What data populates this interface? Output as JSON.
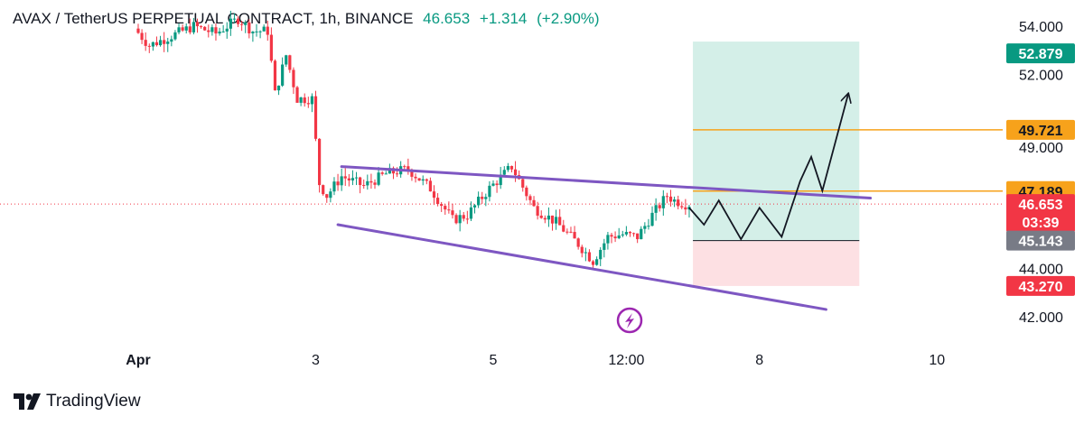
{
  "header": {
    "symbol": "AVAX / TetherUS PERPETUAL CONTRACT",
    "interval": "1h",
    "exchange": "BINANCE",
    "last_price": "46.653",
    "change": "+1.314",
    "change_pct": "(+2.90%)"
  },
  "brand": {
    "name": "TradingView"
  },
  "colors": {
    "up": "#089981",
    "down": "#f23645",
    "channel": "#7e57c2",
    "level": "#f7a21b",
    "target_zone": "#d4efe8",
    "stop_zone": "#fde0e3",
    "entry_tag": "#787b86",
    "grid_text": "#131722"
  },
  "icons": {
    "flash": "lightning-bolt-icon",
    "logo": "tradingview-logo-icon"
  },
  "chart_data": {
    "type": "candlestick",
    "title": "",
    "y_axis": {
      "side": "right",
      "min": 41.0,
      "max": 54.5,
      "ticks": [
        "54.000",
        "52.000",
        "49.000",
        "44.000",
        "42.000"
      ],
      "tick_values": [
        54,
        52,
        49,
        44,
        42
      ]
    },
    "x_axis": {
      "ticks": [
        "Apr",
        "3",
        "5",
        "12:00",
        "8",
        "10"
      ],
      "tick_hours": [
        0,
        48,
        96,
        132,
        168,
        216
      ]
    },
    "bars_per_hour": 1,
    "series": [
      {
        "name": "",
        "price_path": [
          {
            "t": 0,
            "p": 53.9
          },
          {
            "t": 4,
            "p": 53.2
          },
          {
            "t": 10,
            "p": 53.6
          },
          {
            "t": 16,
            "p": 54.0
          },
          {
            "t": 22,
            "p": 53.7
          },
          {
            "t": 28,
            "p": 54.3
          },
          {
            "t": 32,
            "p": 53.8
          },
          {
            "t": 36,
            "p": 53.8
          },
          {
            "t": 38,
            "p": 51.2
          },
          {
            "t": 41,
            "p": 52.8
          },
          {
            "t": 44,
            "p": 51.0
          },
          {
            "t": 48,
            "p": 51.0
          },
          {
            "t": 50,
            "p": 47.5
          },
          {
            "t": 52,
            "p": 47.0
          },
          {
            "t": 56,
            "p": 47.8
          },
          {
            "t": 62,
            "p": 47.4
          },
          {
            "t": 68,
            "p": 47.9
          },
          {
            "t": 74,
            "p": 48.1
          },
          {
            "t": 80,
            "p": 47.3
          },
          {
            "t": 86,
            "p": 46.0
          },
          {
            "t": 90,
            "p": 46.2
          },
          {
            "t": 96,
            "p": 47.3
          },
          {
            "t": 102,
            "p": 48.2
          },
          {
            "t": 108,
            "p": 46.5
          },
          {
            "t": 114,
            "p": 45.9
          },
          {
            "t": 120,
            "p": 45.0
          },
          {
            "t": 124,
            "p": 44.3
          },
          {
            "t": 128,
            "p": 45.3
          },
          {
            "t": 132,
            "p": 45.4
          },
          {
            "t": 136,
            "p": 45.3
          },
          {
            "t": 140,
            "p": 46.2
          },
          {
            "t": 144,
            "p": 47.0
          },
          {
            "t": 146,
            "p": 46.8
          },
          {
            "t": 149,
            "p": 46.653
          }
        ]
      }
    ],
    "channel_upper": {
      "from": {
        "t": 55,
        "p": 48.2
      },
      "to": {
        "t": 198,
        "p": 46.9
      }
    },
    "channel_lower": {
      "from": {
        "t": 54,
        "p": 45.8
      },
      "to": {
        "t": 186,
        "p": 42.3
      }
    },
    "forecast_path": [
      {
        "t": 149,
        "p": 46.5
      },
      {
        "t": 153,
        "p": 45.8
      },
      {
        "t": 157,
        "p": 46.8
      },
      {
        "t": 163,
        "p": 45.2
      },
      {
        "t": 168,
        "p": 46.5
      },
      {
        "t": 174,
        "p": 45.3
      },
      {
        "t": 179,
        "p": 47.6
      },
      {
        "t": 182,
        "p": 48.6
      },
      {
        "t": 185,
        "p": 47.2
      },
      {
        "t": 192,
        "p": 51.2
      }
    ],
    "position": {
      "x_start": 150,
      "x_end": 195,
      "target": 52.879,
      "entry": 45.143,
      "stop": 43.27
    },
    "levels": [
      {
        "price": 49.721,
        "label": "49.721",
        "from_t": 150
      },
      {
        "price": 47.189,
        "label": "47.189",
        "from_t": 150
      }
    ],
    "current_price_line": 46.653,
    "price_tags": [
      {
        "label": "52.879",
        "price": 52.879,
        "bg": "#089981",
        "fg": "#ffffff"
      },
      {
        "label": "49.721",
        "price": 49.721,
        "bg": "#f7a21b",
        "fg": "#131722"
      },
      {
        "label": "47.189",
        "price": 47.189,
        "bg": "#f7a21b",
        "fg": "#131722"
      },
      {
        "label": "46.653",
        "price": 46.653,
        "bg": "#f23645",
        "fg": "#ffffff",
        "sub": "03:39"
      },
      {
        "label": "45.143",
        "price": 45.143,
        "bg": "#787b86",
        "fg": "#ffffff"
      },
      {
        "label": "43.270",
        "price": 43.27,
        "bg": "#f23645",
        "fg": "#ffffff"
      }
    ]
  }
}
